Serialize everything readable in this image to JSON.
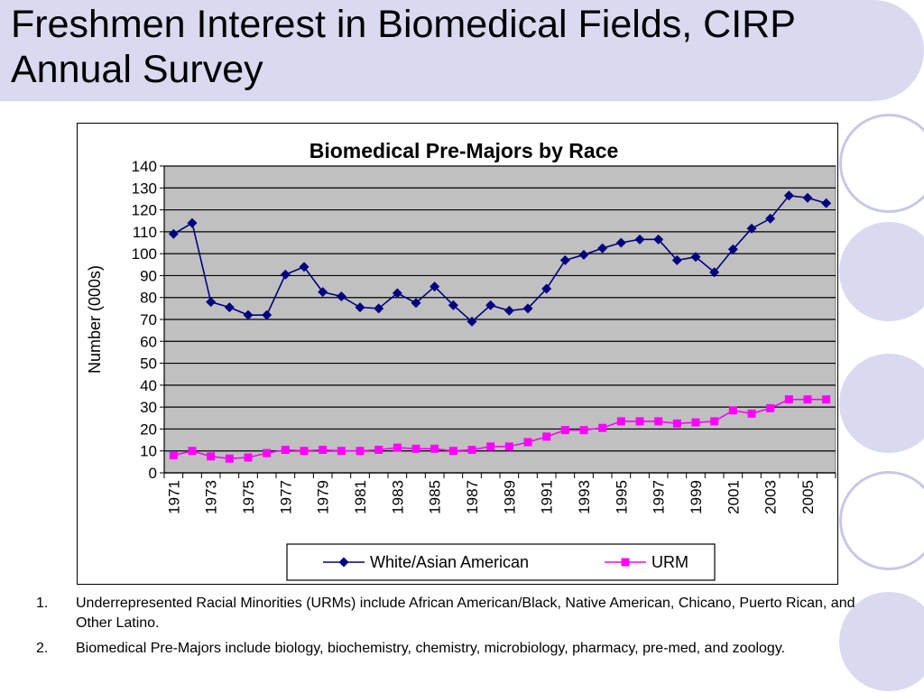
{
  "slide": {
    "title": "Freshmen Interest in Biomedical Fields, CIRP Annual Survey"
  },
  "colors": {
    "title_band": "#d9d9f0",
    "circle_fill": "#d9d9f0",
    "circle_ring": "#c8c8e6",
    "plot_area": "#c0c0c0",
    "white_asian_series": "#000080",
    "urm_series": "#ff00ff"
  },
  "chart_data": {
    "type": "line",
    "title": "Biomedical Pre-Majors by Race",
    "xlabel": "",
    "ylabel": "Number (000s)",
    "ylim": [
      0,
      140
    ],
    "y_ticks": [
      0,
      10,
      20,
      30,
      40,
      50,
      60,
      70,
      80,
      90,
      100,
      110,
      120,
      130,
      140
    ],
    "x": [
      1971,
      1972,
      1973,
      1974,
      1975,
      1976,
      1977,
      1978,
      1979,
      1980,
      1981,
      1982,
      1983,
      1984,
      1985,
      1986,
      1987,
      1988,
      1989,
      1990,
      1991,
      1992,
      1993,
      1994,
      1995,
      1996,
      1997,
      1998,
      1999,
      2000,
      2001,
      2002,
      2003,
      2004,
      2005,
      2006
    ],
    "x_tick_labels": [
      "1971",
      "1973",
      "1975",
      "1977",
      "1979",
      "1981",
      "1983",
      "1985",
      "1987",
      "1989",
      "1991",
      "1993",
      "1995",
      "1997",
      "1999",
      "2001",
      "2003",
      "2005"
    ],
    "grid": "horizontal",
    "legend_position": "bottom",
    "series": [
      {
        "name": "White/Asian American",
        "marker": "diamond",
        "values": [
          109,
          114,
          78,
          75.5,
          72,
          72,
          90.5,
          94,
          82.5,
          80.5,
          75.5,
          75,
          82,
          77.5,
          85,
          76.5,
          69,
          76.5,
          74,
          75,
          84,
          97,
          99.5,
          102.5,
          105,
          106.5,
          106.5,
          97,
          98.5,
          91.5,
          102,
          111.5,
          116,
          126.5,
          125.5,
          123
        ]
      },
      {
        "name": "URM",
        "marker": "square",
        "values": [
          8,
          10,
          7.5,
          6.5,
          7,
          9,
          10.5,
          10,
          10.5,
          10,
          10,
          10.5,
          11.5,
          11,
          11,
          10,
          10.5,
          12,
          12,
          14,
          16.5,
          19.5,
          19.5,
          20.5,
          23.5,
          23.5,
          23.5,
          22.5,
          23,
          23.5,
          28.5,
          27,
          29.5,
          33.5,
          33.5,
          33.5
        ]
      }
    ]
  },
  "footnotes": [
    {
      "num": "1.",
      "text": "Underrepresented Racial Minorities (URMs) include African American/Black, Native American, Chicano, Puerto Rican, and Other Latino."
    },
    {
      "num": "2.",
      "text": "Biomedical Pre-Majors include biology, biochemistry, chemistry, microbiology, pharmacy, pre-med, and zoology."
    }
  ]
}
